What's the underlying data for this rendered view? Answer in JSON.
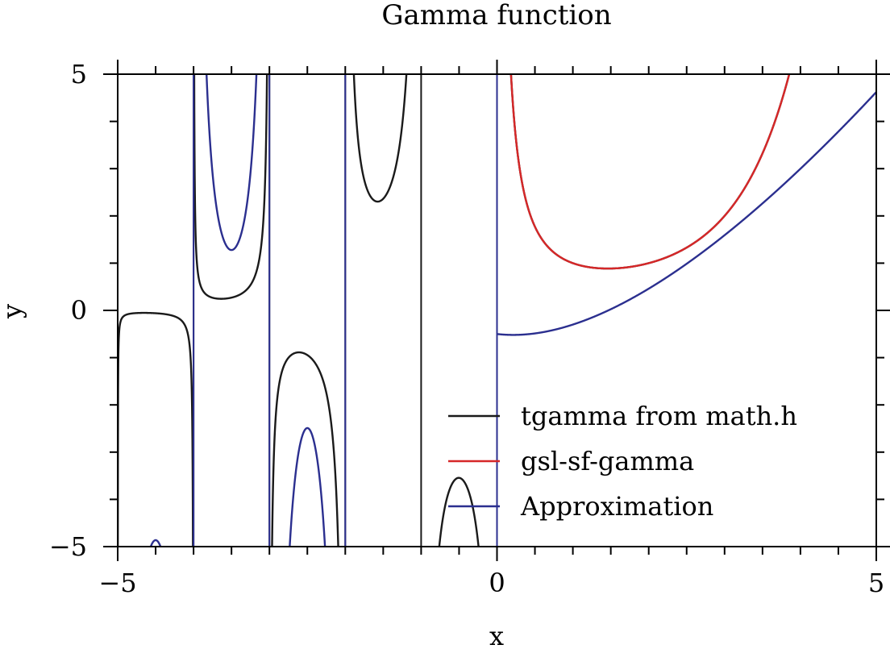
{
  "chart_data": {
    "type": "line",
    "title": "Gamma function",
    "xlabel": "x",
    "ylabel": "y",
    "xlim": [
      -5,
      5
    ],
    "ylim": [
      -5,
      5
    ],
    "x_ticks": [
      {
        "value": -5,
        "label": "−5"
      },
      {
        "value": 0,
        "label": "0"
      },
      {
        "value": 5,
        "label": "5"
      }
    ],
    "y_ticks": [
      {
        "value": 5,
        "label": "5"
      },
      {
        "value": 0,
        "label": "0"
      },
      {
        "value": -5,
        "label": "−5"
      }
    ],
    "minor_x_step": 0.5,
    "minor_y_step": 1,
    "grid": false,
    "legend_position": "bottom-right",
    "series": [
      {
        "name": "tgamma from math.h",
        "color": "#1a1a1a",
        "function": "gamma",
        "x_range": [
          -5,
          5
        ],
        "vertical_asymptotes": [
          -4,
          -3,
          -2,
          -1
        ]
      },
      {
        "name": "gsl-sf-gamma",
        "color": "#d62728",
        "function": "gamma",
        "x_range": [
          0,
          5
        ]
      },
      {
        "name": "Approximation",
        "color": "#2b2f8f",
        "function": "approximation",
        "x_range": [
          -5,
          5
        ],
        "vertical_asymptotes": [
          -4,
          -3,
          -2,
          0
        ]
      }
    ]
  }
}
